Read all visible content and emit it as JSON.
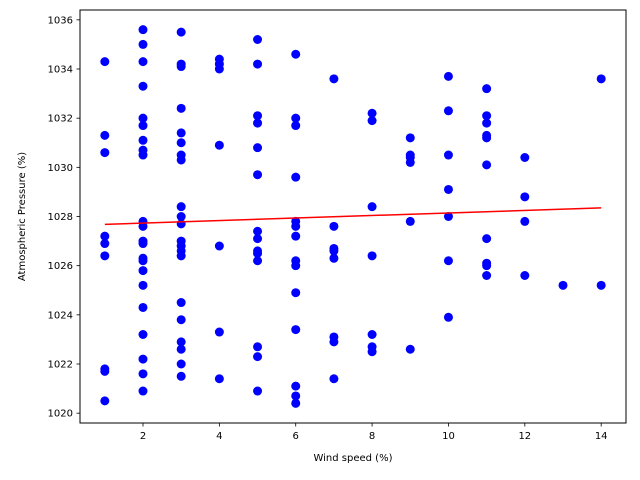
{
  "chart_data": {
    "type": "scatter",
    "title": "",
    "xlabel": "Wind speed (%)",
    "ylabel": "Atmospheric Pressure (%)",
    "xlim": [
      0.35,
      14.65
    ],
    "ylim": [
      1019.6,
      1036.4
    ],
    "xticks": [
      2,
      4,
      6,
      8,
      10,
      12,
      14
    ],
    "yticks": [
      1020,
      1022,
      1024,
      1026,
      1028,
      1030,
      1032,
      1034,
      1036
    ],
    "grid": false,
    "legend": "none",
    "colors": {
      "points": "#0000ff",
      "trend": "#ff0000"
    },
    "series": [
      {
        "points": [
          [
            1,
            1034.3
          ],
          [
            1,
            1031.3
          ],
          [
            1,
            1030.6
          ],
          [
            1,
            1027.2
          ],
          [
            1,
            1026.9
          ],
          [
            1,
            1026.4
          ],
          [
            1,
            1021.8
          ],
          [
            1,
            1021.7
          ],
          [
            1,
            1020.5
          ],
          [
            2,
            1035.6
          ],
          [
            2,
            1035.0
          ],
          [
            2,
            1034.3
          ],
          [
            2,
            1033.3
          ],
          [
            2,
            1032.0
          ],
          [
            2,
            1031.7
          ],
          [
            2,
            1031.1
          ],
          [
            2,
            1030.7
          ],
          [
            2,
            1030.5
          ],
          [
            2,
            1027.8
          ],
          [
            2,
            1027.6
          ],
          [
            2,
            1027.0
          ],
          [
            2,
            1026.9
          ],
          [
            2,
            1026.3
          ],
          [
            2,
            1026.2
          ],
          [
            2,
            1025.8
          ],
          [
            2,
            1025.2
          ],
          [
            2,
            1024.3
          ],
          [
            2,
            1023.2
          ],
          [
            2,
            1022.2
          ],
          [
            2,
            1021.6
          ],
          [
            2,
            1020.9
          ],
          [
            3,
            1035.5
          ],
          [
            3,
            1034.2
          ],
          [
            3,
            1034.1
          ],
          [
            3,
            1032.4
          ],
          [
            3,
            1031.4
          ],
          [
            3,
            1031.0
          ],
          [
            3,
            1030.5
          ],
          [
            3,
            1030.3
          ],
          [
            3,
            1028.4
          ],
          [
            3,
            1028.0
          ],
          [
            3,
            1027.7
          ],
          [
            3,
            1027.0
          ],
          [
            3,
            1026.8
          ],
          [
            3,
            1026.6
          ],
          [
            3,
            1026.4
          ],
          [
            3,
            1024.5
          ],
          [
            3,
            1023.8
          ],
          [
            3,
            1022.9
          ],
          [
            3,
            1022.6
          ],
          [
            3,
            1022.0
          ],
          [
            3,
            1021.5
          ],
          [
            4,
            1034.4
          ],
          [
            4,
            1034.2
          ],
          [
            4,
            1034.0
          ],
          [
            4,
            1030.9
          ],
          [
            4,
            1026.8
          ],
          [
            4,
            1023.3
          ],
          [
            4,
            1021.4
          ],
          [
            5,
            1035.2
          ],
          [
            5,
            1034.2
          ],
          [
            5,
            1032.1
          ],
          [
            5,
            1031.8
          ],
          [
            5,
            1030.8
          ],
          [
            5,
            1029.7
          ],
          [
            5,
            1027.4
          ],
          [
            5,
            1027.1
          ],
          [
            5,
            1026.6
          ],
          [
            5,
            1026.5
          ],
          [
            5,
            1026.2
          ],
          [
            5,
            1022.7
          ],
          [
            5,
            1022.3
          ],
          [
            5,
            1020.9
          ],
          [
            6,
            1034.6
          ],
          [
            6,
            1032.0
          ],
          [
            6,
            1031.7
          ],
          [
            6,
            1029.6
          ],
          [
            6,
            1027.8
          ],
          [
            6,
            1027.6
          ],
          [
            6,
            1027.2
          ],
          [
            6,
            1026.2
          ],
          [
            6,
            1026.0
          ],
          [
            6,
            1024.9
          ],
          [
            6,
            1023.4
          ],
          [
            6,
            1021.1
          ],
          [
            6,
            1020.7
          ],
          [
            6,
            1020.4
          ],
          [
            7,
            1033.6
          ],
          [
            7,
            1027.6
          ],
          [
            7,
            1026.7
          ],
          [
            7,
            1026.6
          ],
          [
            7,
            1026.3
          ],
          [
            7,
            1023.1
          ],
          [
            7,
            1022.9
          ],
          [
            7,
            1021.4
          ],
          [
            8,
            1032.2
          ],
          [
            8,
            1031.9
          ],
          [
            8,
            1028.4
          ],
          [
            8,
            1026.4
          ],
          [
            8,
            1023.2
          ],
          [
            8,
            1022.7
          ],
          [
            8,
            1022.5
          ],
          [
            9,
            1031.2
          ],
          [
            9,
            1030.5
          ],
          [
            9,
            1030.4
          ],
          [
            9,
            1030.2
          ],
          [
            9,
            1027.8
          ],
          [
            9,
            1022.6
          ],
          [
            10,
            1033.7
          ],
          [
            10,
            1032.3
          ],
          [
            10,
            1030.5
          ],
          [
            10,
            1029.1
          ],
          [
            10,
            1028.0
          ],
          [
            10,
            1026.2
          ],
          [
            10,
            1023.9
          ],
          [
            11,
            1033.2
          ],
          [
            11,
            1032.1
          ],
          [
            11,
            1031.8
          ],
          [
            11,
            1031.3
          ],
          [
            11,
            1031.2
          ],
          [
            11,
            1030.1
          ],
          [
            11,
            1027.1
          ],
          [
            11,
            1026.1
          ],
          [
            11,
            1026.0
          ],
          [
            11,
            1025.6
          ],
          [
            12,
            1030.4
          ],
          [
            12,
            1028.8
          ],
          [
            12,
            1027.8
          ],
          [
            12,
            1025.6
          ],
          [
            13,
            1025.2
          ],
          [
            14,
            1033.6
          ],
          [
            14,
            1025.2
          ]
        ]
      }
    ],
    "trend_line": {
      "x": [
        1,
        14
      ],
      "y": [
        1027.68,
        1028.35
      ]
    }
  }
}
